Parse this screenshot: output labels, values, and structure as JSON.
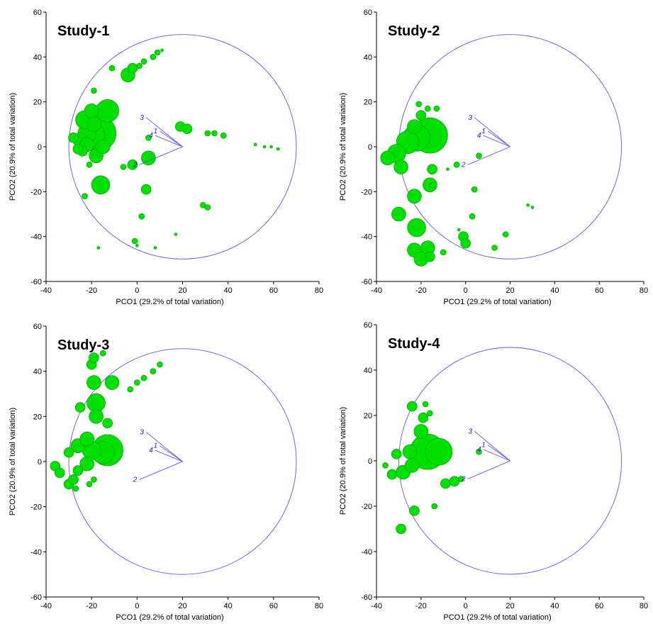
{
  "chart_data": [
    {
      "type": "scatter",
      "title": "Study-1",
      "xlabel": "PCO1 (29.2% of total variation)",
      "ylabel": "PCO2 (20.9% of total variation)",
      "xlim": [
        -40,
        80
      ],
      "ylim": [
        -60,
        60
      ],
      "xticks": [
        "-40",
        "-20",
        "0",
        "20",
        "40",
        "60",
        "80"
      ],
      "yticks": [
        "-60",
        "-40",
        "-20",
        "0",
        "20",
        "40",
        "60"
      ],
      "correlation_circle": {
        "center": [
          20,
          0
        ],
        "radius": 50
      },
      "vectors": [
        {
          "label": "1",
          "x": -10,
          "y": 7
        },
        {
          "label": "2",
          "x": -19,
          "y": -8
        },
        {
          "label": "3",
          "x": -16,
          "y": 13
        },
        {
          "label": "4",
          "x": -12,
          "y": 5
        }
      ],
      "points": [
        {
          "x": -28,
          "y": 4,
          "s": 2
        },
        {
          "x": -25,
          "y": 3,
          "s": 3
        },
        {
          "x": -22,
          "y": 6,
          "s": 4
        },
        {
          "x": -20,
          "y": 5,
          "s": 6
        },
        {
          "x": -17,
          "y": 6,
          "s": 8
        },
        {
          "x": -23,
          "y": 12,
          "s": 4
        },
        {
          "x": -20,
          "y": 16,
          "s": 3
        },
        {
          "x": -13,
          "y": 16,
          "s": 5
        },
        {
          "x": -22,
          "y": 1,
          "s": 3
        },
        {
          "x": -24,
          "y": -2,
          "s": 2
        },
        {
          "x": -18,
          "y": -4,
          "s": 3
        },
        {
          "x": -15,
          "y": 0,
          "s": 3
        },
        {
          "x": -19,
          "y": 10,
          "s": 3
        },
        {
          "x": -26,
          "y": -1,
          "s": 2
        },
        {
          "x": -21,
          "y": -8,
          "s": 1
        },
        {
          "x": -16,
          "y": -17,
          "s": 4
        },
        {
          "x": -23,
          "y": -22,
          "s": 1
        },
        {
          "x": -19,
          "y": 25,
          "s": 1
        },
        {
          "x": -11,
          "y": 35,
          "s": 1
        },
        {
          "x": -4,
          "y": 32,
          "s": 3
        },
        {
          "x": -2,
          "y": 35,
          "s": 2
        },
        {
          "x": 1,
          "y": 36,
          "s": 1
        },
        {
          "x": 3,
          "y": 38,
          "s": 1
        },
        {
          "x": 7,
          "y": 40,
          "s": 1
        },
        {
          "x": 9,
          "y": 42,
          "s": 1
        },
        {
          "x": 11,
          "y": 43,
          "s": 0
        },
        {
          "x": -2,
          "y": -8,
          "s": 2
        },
        {
          "x": 5,
          "y": -5,
          "s": 3
        },
        {
          "x": 5,
          "y": 4,
          "s": 1
        },
        {
          "x": -6,
          "y": -9,
          "s": 1
        },
        {
          "x": 19,
          "y": 9,
          "s": 2
        },
        {
          "x": 22,
          "y": 8,
          "s": 2
        },
        {
          "x": 31,
          "y": 6,
          "s": 1
        },
        {
          "x": 34,
          "y": 6,
          "s": 1
        },
        {
          "x": 38,
          "y": 5,
          "s": 1
        },
        {
          "x": 52,
          "y": 1,
          "s": 0
        },
        {
          "x": 56,
          "y": 0,
          "s": 0
        },
        {
          "x": 59,
          "y": 0,
          "s": 0
        },
        {
          "x": 62,
          "y": -1,
          "s": 0
        },
        {
          "x": 4,
          "y": -19,
          "s": 2
        },
        {
          "x": 2,
          "y": -31,
          "s": 1
        },
        {
          "x": 29,
          "y": -26,
          "s": 1
        },
        {
          "x": 31,
          "y": -27,
          "s": 1
        },
        {
          "x": 17,
          "y": -39,
          "s": 0
        },
        {
          "x": -1,
          "y": -42,
          "s": 1
        },
        {
          "x": 0,
          "y": -44,
          "s": 0
        },
        {
          "x": 8,
          "y": -45,
          "s": 0
        },
        {
          "x": -17,
          "y": -45,
          "s": 0
        }
      ]
    },
    {
      "type": "scatter",
      "title": "Study-2",
      "xlabel": "PCO1 (29.2% of total variation)",
      "ylabel": "PCO2 (20.9% of total variation)",
      "xlim": [
        -40,
        80
      ],
      "ylim": [
        -60,
        60
      ],
      "xticks": [
        "-40",
        "-20",
        "0",
        "20",
        "40",
        "60",
        "80"
      ],
      "yticks": [
        "-60",
        "-40",
        "-20",
        "0",
        "20",
        "40",
        "60"
      ],
      "correlation_circle": {
        "center": [
          20,
          0
        ],
        "radius": 50
      },
      "vectors": [
        {
          "label": "1",
          "x": -10,
          "y": 7
        },
        {
          "label": "2",
          "x": -19,
          "y": -8
        },
        {
          "label": "3",
          "x": -16,
          "y": 13
        },
        {
          "label": "4",
          "x": -12,
          "y": 5
        }
      ],
      "points": [
        {
          "x": -35,
          "y": -5,
          "s": 3
        },
        {
          "x": -31,
          "y": -3,
          "s": 4
        },
        {
          "x": -29,
          "y": -9,
          "s": 3
        },
        {
          "x": -26,
          "y": 2,
          "s": 5
        },
        {
          "x": -22,
          "y": 4,
          "s": 6
        },
        {
          "x": -16,
          "y": 5,
          "s": 8
        },
        {
          "x": -23,
          "y": 9,
          "s": 3
        },
        {
          "x": -20,
          "y": 14,
          "s": 2
        },
        {
          "x": -15,
          "y": -10,
          "s": 2
        },
        {
          "x": -21,
          "y": 19,
          "s": 1
        },
        {
          "x": -17,
          "y": 17,
          "s": 1
        },
        {
          "x": -13,
          "y": 17,
          "s": 1
        },
        {
          "x": -23,
          "y": -22,
          "s": 3
        },
        {
          "x": -16,
          "y": -17,
          "s": 3
        },
        {
          "x": -30,
          "y": -30,
          "s": 3
        },
        {
          "x": -22,
          "y": -36,
          "s": 4
        },
        {
          "x": -23,
          "y": -46,
          "s": 3
        },
        {
          "x": -17,
          "y": -45,
          "s": 3
        },
        {
          "x": -20,
          "y": -50,
          "s": 3
        },
        {
          "x": -16,
          "y": -49,
          "s": 2
        },
        {
          "x": -10,
          "y": -47,
          "s": 1
        },
        {
          "x": -1,
          "y": -40,
          "s": 2
        },
        {
          "x": 0,
          "y": -43,
          "s": 2
        },
        {
          "x": 3,
          "y": -31,
          "s": 1
        },
        {
          "x": 4,
          "y": -19,
          "s": 1
        },
        {
          "x": 13,
          "y": -45,
          "s": 1
        },
        {
          "x": 18,
          "y": -39,
          "s": 1
        },
        {
          "x": 28,
          "y": -26,
          "s": 0
        },
        {
          "x": 30,
          "y": -27,
          "s": 0
        },
        {
          "x": -4,
          "y": -8,
          "s": 1
        },
        {
          "x": 6,
          "y": -4,
          "s": 1
        },
        {
          "x": -15,
          "y": -17,
          "s": 1
        },
        {
          "x": -8,
          "y": -10,
          "s": 0
        },
        {
          "x": -3,
          "y": -37,
          "s": 0
        }
      ]
    },
    {
      "type": "scatter",
      "title": "Study-3",
      "xlabel": "PCO1 (29.2% of total variation)",
      "ylabel": "PCO2 (20.9% of total variation)",
      "xlim": [
        -40,
        80
      ],
      "ylim": [
        -60,
        60
      ],
      "xticks": [
        "-40",
        "-20",
        "0",
        "20",
        "40",
        "60",
        "80"
      ],
      "yticks": [
        "-60",
        "-40",
        "-20",
        "0",
        "20",
        "40",
        "60"
      ],
      "correlation_circle": {
        "center": [
          20,
          0
        ],
        "radius": 50
      },
      "vectors": [
        {
          "label": "1",
          "x": -10,
          "y": 7
        },
        {
          "label": "2",
          "x": -19,
          "y": -8
        },
        {
          "label": "3",
          "x": -16,
          "y": 13
        },
        {
          "label": "4",
          "x": -12,
          "y": 5
        }
      ],
      "points": [
        {
          "x": -36,
          "y": -2,
          "s": 2
        },
        {
          "x": -34,
          "y": -5,
          "s": 2
        },
        {
          "x": -30,
          "y": -10,
          "s": 2
        },
        {
          "x": -28,
          "y": -8,
          "s": 2
        },
        {
          "x": -26,
          "y": -4,
          "s": 2
        },
        {
          "x": -30,
          "y": 4,
          "s": 2
        },
        {
          "x": -26,
          "y": 7,
          "s": 3
        },
        {
          "x": -22,
          "y": 10,
          "s": 3
        },
        {
          "x": -20,
          "y": 5,
          "s": 4
        },
        {
          "x": -15,
          "y": 4,
          "s": 5
        },
        {
          "x": -13,
          "y": 5,
          "s": 7
        },
        {
          "x": -18,
          "y": 20,
          "s": 3
        },
        {
          "x": -18,
          "y": 26,
          "s": 4
        },
        {
          "x": -25,
          "y": 24,
          "s": 2
        },
        {
          "x": -13,
          "y": 17,
          "s": 2
        },
        {
          "x": -19,
          "y": 35,
          "s": 3
        },
        {
          "x": -11,
          "y": 35,
          "s": 3
        },
        {
          "x": -20,
          "y": 43,
          "s": 2
        },
        {
          "x": -19,
          "y": 46,
          "s": 2
        },
        {
          "x": -15,
          "y": 48,
          "s": 1
        },
        {
          "x": -3,
          "y": 32,
          "s": 1
        },
        {
          "x": 0,
          "y": 35,
          "s": 1
        },
        {
          "x": 3,
          "y": 37,
          "s": 1
        },
        {
          "x": 7,
          "y": 40,
          "s": 1
        },
        {
          "x": 10,
          "y": 43,
          "s": 1
        },
        {
          "x": -27,
          "y": -12,
          "s": 1
        },
        {
          "x": -21,
          "y": -10,
          "s": 1
        },
        {
          "x": -19,
          "y": -8,
          "s": 1
        },
        {
          "x": -22,
          "y": -1,
          "s": 3
        }
      ]
    },
    {
      "type": "scatter",
      "title": "Study-4",
      "xlabel": "PCO1 (29.2% of total variation)",
      "ylabel": "PCO2 (20.9% of total variation)",
      "xlim": [
        -40,
        80
      ],
      "ylim": [
        -60,
        60
      ],
      "xticks": [
        "-40",
        "-20",
        "0",
        "20",
        "40",
        "60",
        "80"
      ],
      "yticks": [
        "-60",
        "-40",
        "-20",
        "0",
        "20",
        "40",
        "60"
      ],
      "correlation_circle": {
        "center": [
          20,
          0
        ],
        "radius": 50
      },
      "vectors": [
        {
          "label": "1",
          "x": -10,
          "y": 7
        },
        {
          "label": "2",
          "x": -19,
          "y": -8
        },
        {
          "label": "3",
          "x": -16,
          "y": 13
        },
        {
          "label": "4",
          "x": -12,
          "y": 5
        }
      ],
      "points": [
        {
          "x": -36,
          "y": -2,
          "s": 1
        },
        {
          "x": -33,
          "y": -6,
          "s": 2
        },
        {
          "x": -31,
          "y": 3,
          "s": 2
        },
        {
          "x": -28,
          "y": -5,
          "s": 3
        },
        {
          "x": -24,
          "y": -2,
          "s": 3
        },
        {
          "x": -25,
          "y": 4,
          "s": 3
        },
        {
          "x": -17,
          "y": 4,
          "s": 8
        },
        {
          "x": -12,
          "y": 4,
          "s": 6
        },
        {
          "x": -20,
          "y": 13,
          "s": 3
        },
        {
          "x": -19,
          "y": 19,
          "s": 2
        },
        {
          "x": -24,
          "y": 24,
          "s": 2
        },
        {
          "x": -18,
          "y": 25,
          "s": 1
        },
        {
          "x": -16,
          "y": 21,
          "s": 1
        },
        {
          "x": -9,
          "y": -10,
          "s": 2
        },
        {
          "x": -5,
          "y": -9,
          "s": 2
        },
        {
          "x": -2,
          "y": -8,
          "s": 1
        },
        {
          "x": -14,
          "y": -20,
          "s": 1
        },
        {
          "x": -23,
          "y": -22,
          "s": 2
        },
        {
          "x": -29,
          "y": -30,
          "s": 2
        },
        {
          "x": 6,
          "y": 4,
          "s": 1
        }
      ]
    }
  ]
}
